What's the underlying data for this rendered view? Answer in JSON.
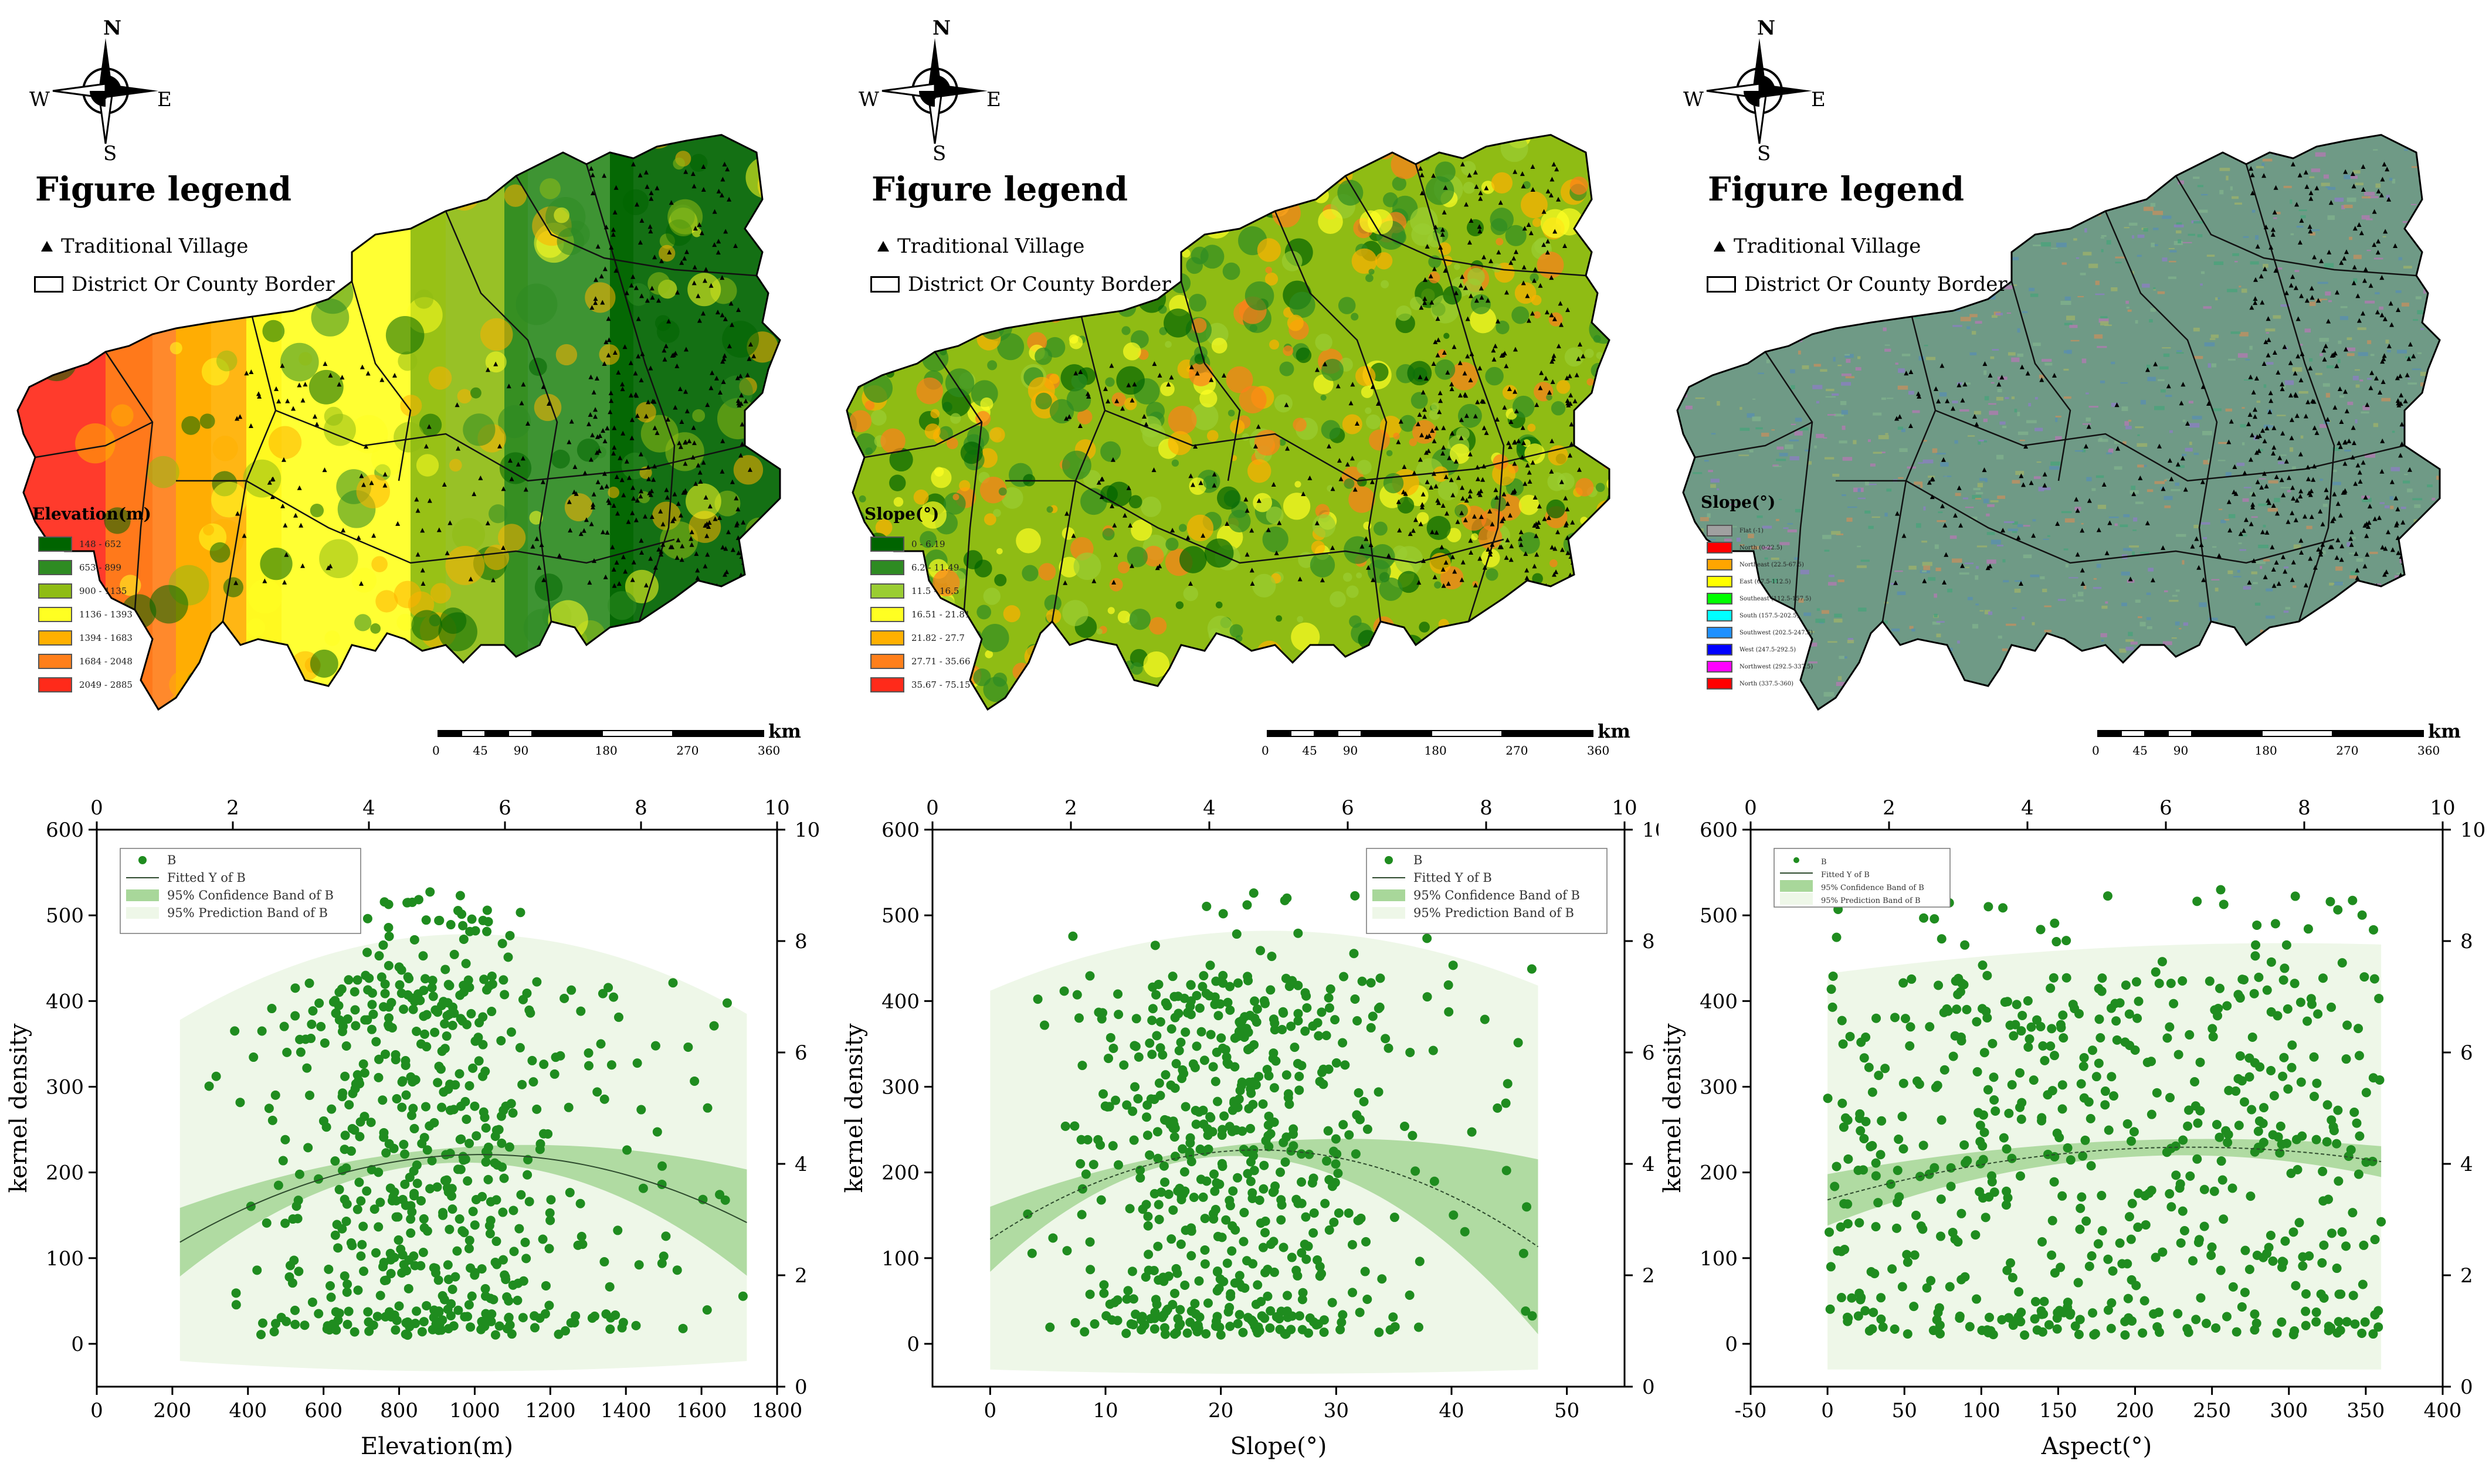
{
  "compass": {
    "n": "N",
    "s": "S",
    "e": "E",
    "w": "W"
  },
  "maps": [
    {
      "legend_title": "Figure legend",
      "legend_village": "Traditional Village",
      "legend_border": "District Or County Border",
      "ramp_title": "Elevation(m)",
      "ramp": [
        {
          "label": "148 - 652",
          "color": "#006400"
        },
        {
          "label": "653 - 899",
          "color": "#2e8b22"
        },
        {
          "label": "900 - 1135",
          "color": "#8fbc14"
        },
        {
          "label": "1136 - 1393",
          "color": "#ffff22"
        },
        {
          "label": "1394 - 1683",
          "color": "#ffb000"
        },
        {
          "label": "1684 - 2048",
          "color": "#ff7f1a"
        },
        {
          "label": "2049 - 2885",
          "color": "#ff2a1a"
        }
      ],
      "scale_unit": "km",
      "scale_ticks": [
        "0",
        "45",
        "90",
        "180",
        "270",
        "360"
      ]
    },
    {
      "legend_title": "Figure legend",
      "legend_village": "Traditional Village",
      "legend_border": "District Or County Border",
      "ramp_title": "Slope(°)",
      "ramp": [
        {
          "label": "0 - 6.19",
          "color": "#006400"
        },
        {
          "label": "6.2 - 11.49",
          "color": "#2e8b22"
        },
        {
          "label": "11.5 - 16.5",
          "color": "#9acd32"
        },
        {
          "label": "16.51 - 21.81",
          "color": "#ffff22"
        },
        {
          "label": "21.82 - 27.7",
          "color": "#ffb000"
        },
        {
          "label": "27.71 - 35.66",
          "color": "#ff7f1a"
        },
        {
          "label": "35.67 - 75.15",
          "color": "#ff2a1a"
        }
      ],
      "scale_unit": "km",
      "scale_ticks": [
        "0",
        "45",
        "90",
        "180",
        "270",
        "360"
      ]
    },
    {
      "legend_title": "Figure legend",
      "legend_village": "Traditional Village",
      "legend_border": "District Or County Border",
      "ramp_title": "Slope(°)",
      "ramp": [
        {
          "label": "Flat (-1)",
          "color": "#a0a0a0"
        },
        {
          "label": "North (0-22.5)",
          "color": "#ff0000"
        },
        {
          "label": "Northeast (22.5-67.5)",
          "color": "#ffa500"
        },
        {
          "label": "East (67.5-112.5)",
          "color": "#ffff00"
        },
        {
          "label": "Southeast (112.5-157.5)",
          "color": "#00ff00"
        },
        {
          "label": "South (157.5-202.5)",
          "color": "#00ffff"
        },
        {
          "label": "Southwest (202.5-247.5)",
          "color": "#1e90ff"
        },
        {
          "label": "West (247.5-292.5)",
          "color": "#0000ff"
        },
        {
          "label": "Northwest (292.5-337.5)",
          "color": "#ff00ff"
        },
        {
          "label": "North (337.5-360)",
          "color": "#ff0000"
        }
      ],
      "scale_unit": "km",
      "scale_ticks": [
        "0",
        "45",
        "90",
        "180",
        "270",
        "360"
      ]
    }
  ],
  "chart_data": [
    {
      "type": "scatter",
      "xlabel": "Elevation(m)",
      "ylabel": "kernel density",
      "xlim": [
        0,
        1800
      ],
      "xticks": [
        0,
        200,
        400,
        600,
        800,
        1000,
        1200,
        1400,
        1600,
        1800
      ],
      "ylim": [
        -50,
        600
      ],
      "yticks": [
        0,
        100,
        200,
        300,
        400,
        500,
        600
      ],
      "top_xlim": [
        0,
        10
      ],
      "top_xticks": [
        0,
        2,
        4,
        6,
        8,
        10
      ],
      "right_ylim": [
        0,
        10
      ],
      "right_yticks": [
        0,
        2,
        4,
        6,
        8,
        10
      ],
      "fit": {
        "x_range": [
          220,
          1720
        ],
        "a": -0.0001608,
        "b": 0.3272,
        "c": 54.4
      },
      "conf_band_half": [
        40,
        9,
        62
      ],
      "pred_band": {
        "x_range": [
          220,
          1720
        ],
        "upper": [
          378,
          478,
          385
        ],
        "lower": [
          -20,
          -32,
          -20
        ]
      },
      "scatter_x_range": [
        200,
        1720
      ],
      "n_points": 620,
      "legend": {
        "points": "B",
        "fit": "Fitted Y of B",
        "conf": "95% Confidence Band of B",
        "pred": "95% Prediction Band of B",
        "position": "top-left"
      },
      "colors": {
        "points": "#1f8c1f",
        "conf": "#a8d79a",
        "pred": "#eef7e8",
        "fit": "#2d4a2d"
      }
    },
    {
      "type": "scatter",
      "xlabel": "Slope(°)",
      "ylabel": "kernel density",
      "xlim": [
        -5,
        55
      ],
      "xticks": [
        0,
        10,
        20,
        30,
        40,
        50
      ],
      "ylim": [
        -50,
        600
      ],
      "yticks": [
        0,
        100,
        200,
        300,
        400,
        500,
        600
      ],
      "top_xlim": [
        0,
        10
      ],
      "top_xticks": [
        0,
        2,
        4,
        6,
        8,
        10
      ],
      "right_ylim": [
        0,
        10
      ],
      "right_yticks": [
        0,
        2,
        4,
        6,
        8,
        10
      ],
      "fit": {
        "x_range": [
          0,
          47.5
        ],
        "a": -0.1925,
        "b": 8.96,
        "c": 122.0
      },
      "conf_band_half": [
        38,
        9,
        102
      ],
      "pred_band": {
        "x_range": [
          0,
          47.5
        ],
        "upper": [
          412,
          482,
          418
        ],
        "lower": [
          -30,
          -35,
          -30
        ]
      },
      "scatter_x_range": [
        0,
        47.5
      ],
      "n_points": 620,
      "legend": {
        "points": "B",
        "fit": "Fitted Y of B",
        "conf": "95% Confidence Band of B",
        "pred": "95% Prediction Band of B",
        "position": "top-right"
      },
      "colors": {
        "points": "#1f8c1f",
        "conf": "#a8d79a",
        "pred": "#eef7e8",
        "fit": "#2d4a2d"
      }
    },
    {
      "type": "scatter",
      "xlabel": "Aspect(°)",
      "ylabel": "kernel density",
      "xlim": [
        -50,
        400
      ],
      "xticks": [
        -50,
        0,
        50,
        100,
        150,
        200,
        250,
        300,
        350,
        400
      ],
      "ylim": [
        -50,
        600
      ],
      "yticks": [
        0,
        100,
        200,
        300,
        400,
        500,
        600
      ],
      "top_xlim": [
        0,
        10
      ],
      "top_xticks": [
        0,
        2,
        4,
        6,
        8,
        10
      ],
      "right_ylim": [
        0,
        10
      ],
      "right_yticks": [
        0,
        2,
        4,
        6,
        8,
        10
      ],
      "fit": {
        "x_range": [
          0,
          360
        ],
        "a": -0.0011,
        "b": 0.52,
        "c": 168.0
      },
      "conf_band_half": [
        30,
        10,
        18
      ],
      "pred_band": {
        "x_range": [
          0,
          360
        ],
        "upper": [
          432,
          462,
          466
        ],
        "lower": [
          -30,
          -30,
          -30
        ]
      },
      "scatter_x_range": [
        0,
        360
      ],
      "n_points": 620,
      "legend": {
        "points": "B",
        "fit": "Fitted Y of B",
        "conf": "95% Confidence Band of B",
        "pred": "95% Prediction Band of B",
        "position": "top-left"
      },
      "colors": {
        "points": "#1f8c1f",
        "conf": "#a8d79a",
        "pred": "#eef7e8",
        "fit": "#2d4a2d"
      }
    }
  ]
}
